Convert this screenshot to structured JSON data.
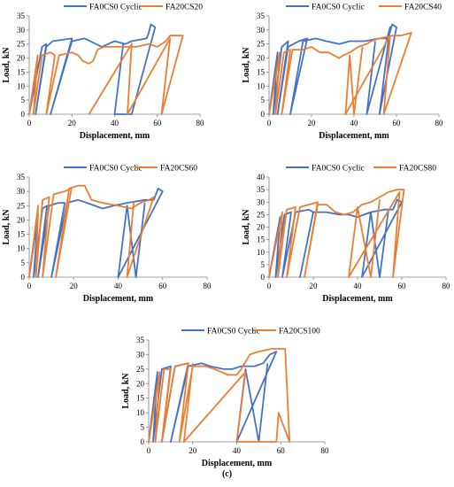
{
  "colors": {
    "series_1": "#4472C4",
    "series_2": "#ED7D31",
    "axis": "#808080",
    "text": "#000000"
  },
  "caption": "(c)",
  "chart_data": [
    {
      "type": "line",
      "xlabel": "Displacement, mm",
      "ylabel": "Load, kN",
      "xlim": [
        0,
        80
      ],
      "ylim": [
        0,
        35
      ],
      "xticks": [
        0,
        20,
        40,
        60,
        80
      ],
      "yticks": [
        0,
        5,
        10,
        15,
        20,
        25,
        30,
        35
      ],
      "legend": "top",
      "series": [
        {
          "name": "FA0CS0 Cyclic",
          "points": [
            [
              0,
              0
            ],
            [
              6,
              24
            ],
            [
              8,
              25
            ],
            [
              3,
              0
            ],
            [
              8,
              24
            ],
            [
              11,
              26
            ],
            [
              20,
              27
            ],
            [
              10,
              0
            ],
            [
              20,
              26
            ],
            [
              26,
              27
            ],
            [
              34,
              24
            ],
            [
              40,
              26
            ],
            [
              45,
              25
            ],
            [
              48,
              26
            ],
            [
              55,
              27
            ],
            [
              56,
              29
            ],
            [
              57,
              32
            ],
            [
              59,
              31
            ],
            [
              48,
              0
            ],
            [
              40,
              0
            ],
            [
              44,
              25
            ]
          ]
        },
        {
          "name": "FA20CS20",
          "points": [
            [
              0,
              0
            ],
            [
              4,
              21
            ],
            [
              2,
              0
            ],
            [
              6,
              21
            ],
            [
              10,
              22
            ],
            [
              12,
              21
            ],
            [
              8,
              0
            ],
            [
              14,
              21
            ],
            [
              20,
              22
            ],
            [
              23,
              21
            ],
            [
              25,
              19
            ],
            [
              28,
              18
            ],
            [
              30,
              19
            ],
            [
              32,
              23
            ],
            [
              35,
              24
            ],
            [
              44,
              24
            ],
            [
              50,
              24
            ],
            [
              56,
              25
            ],
            [
              60,
              24
            ],
            [
              64,
              26
            ],
            [
              66,
              28
            ],
            [
              68,
              28
            ],
            [
              72,
              28
            ],
            [
              62,
              0
            ],
            [
              66,
              27
            ],
            [
              46,
              0
            ],
            [
              48,
              25
            ],
            [
              28,
              0
            ]
          ]
        }
      ]
    },
    {
      "type": "line",
      "xlabel": "Displacement, mm",
      "ylabel": "Load, kN",
      "xlim": [
        0,
        80
      ],
      "ylim": [
        0,
        35
      ],
      "xticks": [
        0,
        20,
        40,
        60,
        80
      ],
      "yticks": [
        0,
        5,
        10,
        15,
        20,
        25,
        30,
        35
      ],
      "legend": "top",
      "series": [
        {
          "name": "FA0CS0 Cyclic",
          "points": [
            [
              0,
              0
            ],
            [
              4,
              22
            ],
            [
              2,
              0
            ],
            [
              6,
              24
            ],
            [
              9,
              26
            ],
            [
              4,
              0
            ],
            [
              9,
              24
            ],
            [
              14,
              26
            ],
            [
              18,
              27
            ],
            [
              10,
              0
            ],
            [
              16,
              26
            ],
            [
              22,
              27
            ],
            [
              27,
              26
            ],
            [
              33,
              25
            ],
            [
              38,
              26
            ],
            [
              45,
              26
            ],
            [
              52,
              27
            ],
            [
              56,
              27
            ],
            [
              58,
              32
            ],
            [
              60,
              31
            ],
            [
              52,
              0
            ],
            [
              57,
              31
            ],
            [
              46,
              0
            ],
            [
              50,
              26
            ]
          ]
        },
        {
          "name": "FA20CS40",
          "points": [
            [
              0,
              0
            ],
            [
              5,
              22
            ],
            [
              3,
              0
            ],
            [
              7,
              22
            ],
            [
              10,
              23
            ],
            [
              6,
              0
            ],
            [
              11,
              23
            ],
            [
              16,
              23
            ],
            [
              20,
              24
            ],
            [
              24,
              22
            ],
            [
              28,
              22
            ],
            [
              33,
              20
            ],
            [
              35,
              21
            ],
            [
              38,
              22
            ],
            [
              42,
              24
            ],
            [
              46,
              25
            ],
            [
              48,
              26
            ],
            [
              52,
              27
            ],
            [
              58,
              28
            ],
            [
              62,
              28
            ],
            [
              67,
              29
            ],
            [
              54,
              0
            ],
            [
              57,
              28
            ],
            [
              36,
              0
            ],
            [
              38,
              21
            ],
            [
              40,
              0
            ],
            [
              44,
              24
            ]
          ]
        }
      ]
    },
    {
      "type": "line",
      "xlabel": "Displacement, mm",
      "ylabel": "Load, kN",
      "xlim": [
        0,
        80
      ],
      "ylim": [
        0,
        35
      ],
      "xticks": [
        0,
        20,
        40,
        60,
        80
      ],
      "yticks": [
        0,
        5,
        10,
        15,
        20,
        25,
        30,
        35
      ],
      "legend": "top",
      "series": [
        {
          "name": "FA0CS0 Cyclic",
          "points": [
            [
              0,
              0
            ],
            [
              4,
              22
            ],
            [
              2,
              0
            ],
            [
              6,
              24
            ],
            [
              8,
              25
            ],
            [
              4,
              0
            ],
            [
              9,
              25
            ],
            [
              13,
              26
            ],
            [
              16,
              26
            ],
            [
              10,
              0
            ],
            [
              17,
              26
            ],
            [
              22,
              27
            ],
            [
              26,
              26
            ],
            [
              33,
              24
            ],
            [
              38,
              25
            ],
            [
              44,
              26
            ],
            [
              52,
              27
            ],
            [
              56,
              27
            ],
            [
              58,
              31
            ],
            [
              60,
              30
            ],
            [
              40,
              0
            ],
            [
              44,
              25
            ],
            [
              48,
              0
            ],
            [
              52,
              26
            ]
          ]
        },
        {
          "name": "FA20CS60",
          "points": [
            [
              0,
              0
            ],
            [
              4,
              25
            ],
            [
              3,
              0
            ],
            [
              6,
              27
            ],
            [
              9,
              28
            ],
            [
              6,
              0
            ],
            [
              11,
              29
            ],
            [
              16,
              30
            ],
            [
              19,
              31
            ],
            [
              12,
              0
            ],
            [
              18,
              31
            ],
            [
              22,
              32
            ],
            [
              25,
              32
            ],
            [
              28,
              27
            ],
            [
              33,
              26
            ],
            [
              40,
              25
            ],
            [
              46,
              24
            ],
            [
              50,
              26
            ],
            [
              54,
              27
            ],
            [
              56,
              28
            ],
            [
              44,
              0
            ],
            [
              47,
              26
            ]
          ]
        }
      ]
    },
    {
      "type": "line",
      "xlabel": "Displacement, mm",
      "ylabel": "Load, kN",
      "xlim": [
        0,
        80
      ],
      "ylim": [
        0,
        40
      ],
      "xticks": [
        0,
        20,
        40,
        60,
        80
      ],
      "yticks": [
        0,
        5,
        10,
        15,
        20,
        25,
        30,
        35,
        40
      ],
      "legend": "top",
      "series": [
        {
          "name": "FA0CS0 Cyclic",
          "points": [
            [
              0,
              0
            ],
            [
              5,
              24
            ],
            [
              3,
              0
            ],
            [
              7,
              25
            ],
            [
              10,
              26
            ],
            [
              6,
              0
            ],
            [
              12,
              26
            ],
            [
              18,
              27
            ],
            [
              20,
              26
            ],
            [
              14,
              0
            ],
            [
              20,
              26
            ],
            [
              26,
              26
            ],
            [
              32,
              25
            ],
            [
              36,
              25
            ],
            [
              40,
              24
            ],
            [
              46,
              26
            ],
            [
              52,
              27
            ],
            [
              56,
              27
            ],
            [
              58,
              31
            ],
            [
              60,
              30
            ],
            [
              42,
              0
            ],
            [
              46,
              26
            ],
            [
              50,
              0
            ],
            [
              54,
              27
            ]
          ]
        },
        {
          "name": "FA20CS80",
          "points": [
            [
              0,
              0
            ],
            [
              6,
              26
            ],
            [
              4,
              0
            ],
            [
              8,
              27
            ],
            [
              12,
              28
            ],
            [
              8,
              0
            ],
            [
              14,
              28
            ],
            [
              18,
              29
            ],
            [
              22,
              30
            ],
            [
              16,
              0
            ],
            [
              22,
              29
            ],
            [
              26,
              29
            ],
            [
              30,
              26
            ],
            [
              34,
              25
            ],
            [
              38,
              26
            ],
            [
              42,
              29
            ],
            [
              46,
              30
            ],
            [
              50,
              32
            ],
            [
              54,
              34
            ],
            [
              58,
              35
            ],
            [
              61,
              35
            ],
            [
              56,
              0
            ],
            [
              59,
              34
            ],
            [
              36,
              0
            ],
            [
              40,
              28
            ],
            [
              46,
              0
            ],
            [
              50,
              31
            ]
          ]
        }
      ]
    },
    {
      "type": "line",
      "xlabel": "Displacement, mm",
      "ylabel": "Load, kN",
      "xlim": [
        0,
        80
      ],
      "ylim": [
        0,
        35
      ],
      "xticks": [
        0,
        20,
        40,
        60,
        80
      ],
      "yticks": [
        0,
        5,
        10,
        15,
        20,
        25,
        30,
        35
      ],
      "legend": "top",
      "series": [
        {
          "name": "FA0CS0 Cyclic",
          "points": [
            [
              0,
              0
            ],
            [
              4,
              24
            ],
            [
              2,
              0
            ],
            [
              6,
              25
            ],
            [
              10,
              26
            ],
            [
              6,
              0
            ],
            [
              12,
              26
            ],
            [
              18,
              27
            ],
            [
              10,
              0
            ],
            [
              18,
              26
            ],
            [
              24,
              27
            ],
            [
              28,
              26
            ],
            [
              34,
              25
            ],
            [
              38,
              25
            ],
            [
              42,
              26
            ],
            [
              48,
              26
            ],
            [
              52,
              27
            ],
            [
              55,
              30
            ],
            [
              58,
              31
            ],
            [
              40,
              0
            ],
            [
              44,
              25
            ],
            [
              50,
              0
            ],
            [
              54,
              27
            ]
          ]
        },
        {
          "name": "FA20CS100",
          "points": [
            [
              0,
              0
            ],
            [
              5,
              24
            ],
            [
              3,
              0
            ],
            [
              7,
              25
            ],
            [
              10,
              25
            ],
            [
              6,
              0
            ],
            [
              12,
              26
            ],
            [
              18,
              27
            ],
            [
              14,
              0
            ],
            [
              20,
              26
            ],
            [
              26,
              26
            ],
            [
              30,
              25
            ],
            [
              36,
              23
            ],
            [
              40,
              23
            ],
            [
              42,
              25
            ],
            [
              46,
              30
            ],
            [
              50,
              31
            ],
            [
              56,
              32
            ],
            [
              62,
              32
            ],
            [
              64,
              0
            ],
            [
              59,
              10
            ],
            [
              58,
              0
            ],
            [
              40,
              0
            ],
            [
              44,
              24
            ],
            [
              16,
              0
            ],
            [
              20,
              27
            ]
          ]
        }
      ]
    }
  ]
}
